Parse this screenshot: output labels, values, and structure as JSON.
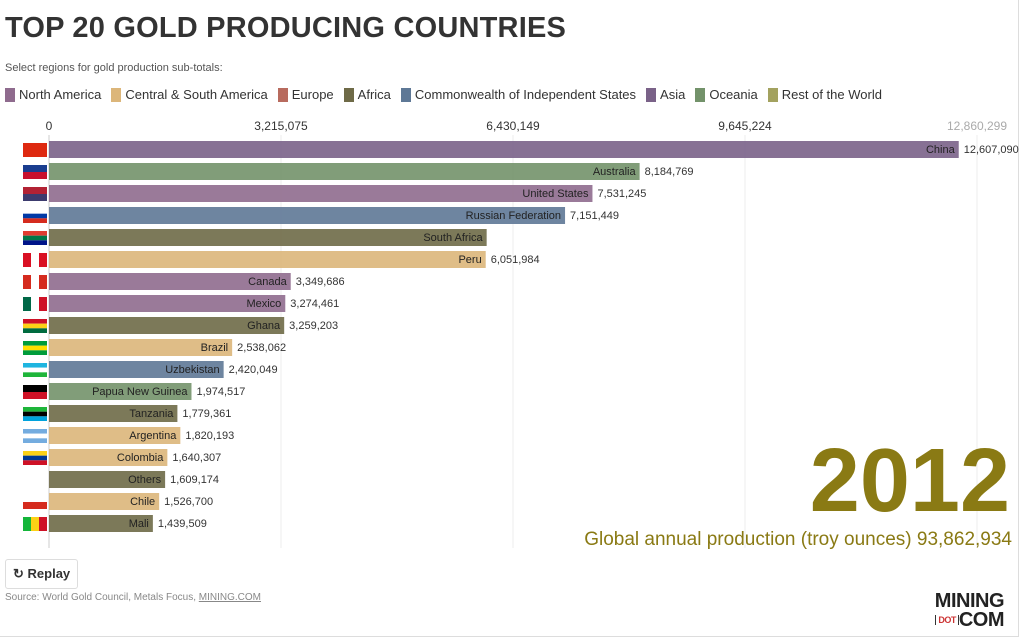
{
  "title": "TOP 20 GOLD PRODUCING COUNTRIES",
  "subtitle": "Select regions for gold production sub-totals:",
  "legend": [
    {
      "label": "North America",
      "color": "#8f6b8e"
    },
    {
      "label": "Central & South America",
      "color": "#dcb67a"
    },
    {
      "label": "Europe",
      "color": "#b86b5e"
    },
    {
      "label": "Africa",
      "color": "#6e6a47"
    },
    {
      "label": "Commonwealth of Independent States",
      "color": "#5e7896"
    },
    {
      "label": "Asia",
      "color": "#7a6288"
    },
    {
      "label": "Oceania",
      "color": "#73926a"
    },
    {
      "label": "Rest of the World",
      "color": "#a3a25f"
    }
  ],
  "chart_data": {
    "type": "bar",
    "orientation": "horizontal",
    "axis_ticks": [
      "0",
      "3,215,075",
      "6,430,149",
      "9,645,224",
      "12,860,299"
    ],
    "xlim": [
      0,
      12860299
    ],
    "grid": true,
    "bars": [
      {
        "name": "China",
        "value": 12607090,
        "value_label": "12,607,090",
        "region": "Asia"
      },
      {
        "name": "Australia",
        "value": 8184769,
        "value_label": "8,184,769",
        "region": "Oceania"
      },
      {
        "name": "United States",
        "value": 7531245,
        "value_label": "7,531,245",
        "region": "North America"
      },
      {
        "name": "Russian Federation",
        "value": 7151449,
        "value_label": "7,151,449",
        "region": "Commonwealth of Independent States"
      },
      {
        "name": "South Africa",
        "value": 6065074,
        "value_label": "",
        "region": "Africa"
      },
      {
        "name": "Peru",
        "value": 6051984,
        "value_label": "6,051,984",
        "region": "Central & South America"
      },
      {
        "name": "Canada",
        "value": 3349686,
        "value_label": "3,349,686",
        "region": "North America"
      },
      {
        "name": "Mexico",
        "value": 3274461,
        "value_label": "3,274,461",
        "region": "North America"
      },
      {
        "name": "Ghana",
        "value": 3259203,
        "value_label": "3,259,203",
        "region": "Africa"
      },
      {
        "name": "Brazil",
        "value": 2538062,
        "value_label": "2,538,062",
        "region": "Central & South America"
      },
      {
        "name": "Uzbekistan",
        "value": 2420049,
        "value_label": "2,420,049",
        "region": "Commonwealth of Independent States"
      },
      {
        "name": "Papua New Guinea",
        "value": 1974517,
        "value_label": "1,974,517",
        "region": "Oceania"
      },
      {
        "name": "Tanzania",
        "value": 1779361,
        "value_label": "1,779,361",
        "region": "Africa"
      },
      {
        "name": "Argentina",
        "value": 1820193,
        "value_label": "1,820,193",
        "region": "Central & South America"
      },
      {
        "name": "Colombia",
        "value": 1640307,
        "value_label": "1,640,307",
        "region": "Central & South America"
      },
      {
        "name": "Others",
        "value": 1609174,
        "value_label": "1,609,174",
        "region": "Africa"
      },
      {
        "name": "Chile",
        "value": 1526700,
        "value_label": "1,526,700",
        "region": "Central & South America"
      },
      {
        "name": "Mali",
        "value": 1439509,
        "value_label": "1,439,509",
        "region": "Africa"
      }
    ]
  },
  "year": "2012",
  "total_label": "Global annual production (troy ounces) 93,862,934",
  "replay_label": "Replay",
  "source_prefix": "Source: World Gold Council, Metals Focus, ",
  "source_link": "MINING.COM",
  "logo_text": "MINING DOT COM"
}
